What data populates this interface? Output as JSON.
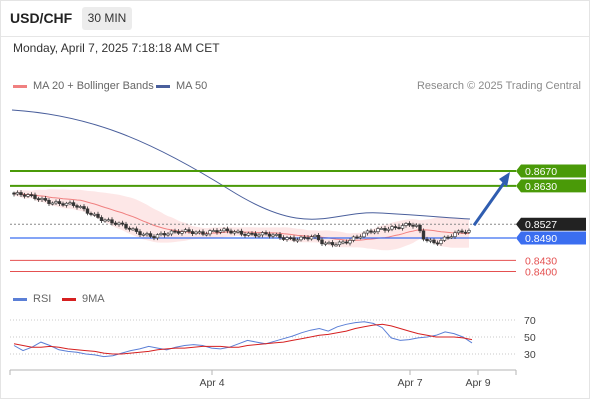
{
  "header": {
    "pair": "USD/CHF",
    "timeframe": "30 MIN",
    "datetime": "Monday, April 7, 2025 7:18:18 AM CET"
  },
  "legend": {
    "ma20_label": "MA 20 + Bollinger Bands",
    "ma50_label": "MA 50",
    "copyright": "Research © 2025 Trading Central",
    "rsi_label": "RSI",
    "ma9_label": "9MA"
  },
  "colors": {
    "accent_green": "#4a9a08",
    "support_blue": "#3b6ef0",
    "resistance_red": "#e45050",
    "candle_dark": "#333333",
    "ma20": "#f08080",
    "ma50": "#4a5f9c",
    "rsi": "#5b7fd6",
    "rsi_ma": "#d62020",
    "arrow": "#2f5db0"
  },
  "chart_data": [
    {
      "type": "candlestick",
      "title": "USD/CHF",
      "x_tick_labels": [
        "Apr 4",
        "Apr 7",
        "Apr 9"
      ],
      "ylim": [
        0.8358,
        0.8757
      ],
      "current_price": 0.8527,
      "levels": [
        {
          "value": 0.867,
          "label": "0.8670",
          "kind": "resistance-green"
        },
        {
          "value": 0.863,
          "label": "0.8630",
          "kind": "resistance-green"
        },
        {
          "value": 0.8527,
          "label": "0.8527",
          "kind": "current-price"
        },
        {
          "value": 0.849,
          "label": "0.8490",
          "kind": "support-blue"
        },
        {
          "value": 0.843,
          "label": "0.8430",
          "kind": "support-red"
        },
        {
          "value": 0.84,
          "label": "0.8400",
          "kind": "support-red"
        }
      ],
      "forecast_arrow": {
        "from": 0.8527,
        "to": 0.867
      }
    },
    {
      "type": "line",
      "series": [
        {
          "name": "RSI",
          "values": [
            40,
            34,
            38,
            44,
            40,
            35,
            33,
            32,
            30,
            29,
            27,
            28,
            31,
            34,
            36,
            39,
            37,
            35,
            38,
            40,
            41,
            40,
            37,
            36,
            38,
            42,
            46,
            44,
            42,
            45,
            48,
            51,
            55,
            58,
            60,
            57,
            62,
            65,
            67,
            68,
            66,
            61,
            49,
            46,
            47,
            49,
            50,
            52,
            56,
            54,
            50,
            43
          ]
        },
        {
          "name": "9MA",
          "values": [
            42,
            40,
            38,
            38,
            39,
            38,
            36,
            35,
            34,
            33,
            31,
            30,
            30,
            31,
            32,
            33,
            35,
            36,
            37,
            37,
            38,
            39,
            39,
            39,
            38,
            38,
            40,
            41,
            42,
            43,
            44,
            46,
            48,
            50,
            52,
            53,
            55,
            57,
            60,
            62,
            64,
            65,
            63,
            60,
            57,
            54,
            52,
            50,
            50,
            50,
            49,
            47
          ]
        }
      ],
      "ylim": [
        20,
        80
      ],
      "y_tick_labels": [
        "70",
        "50",
        "30"
      ]
    }
  ]
}
